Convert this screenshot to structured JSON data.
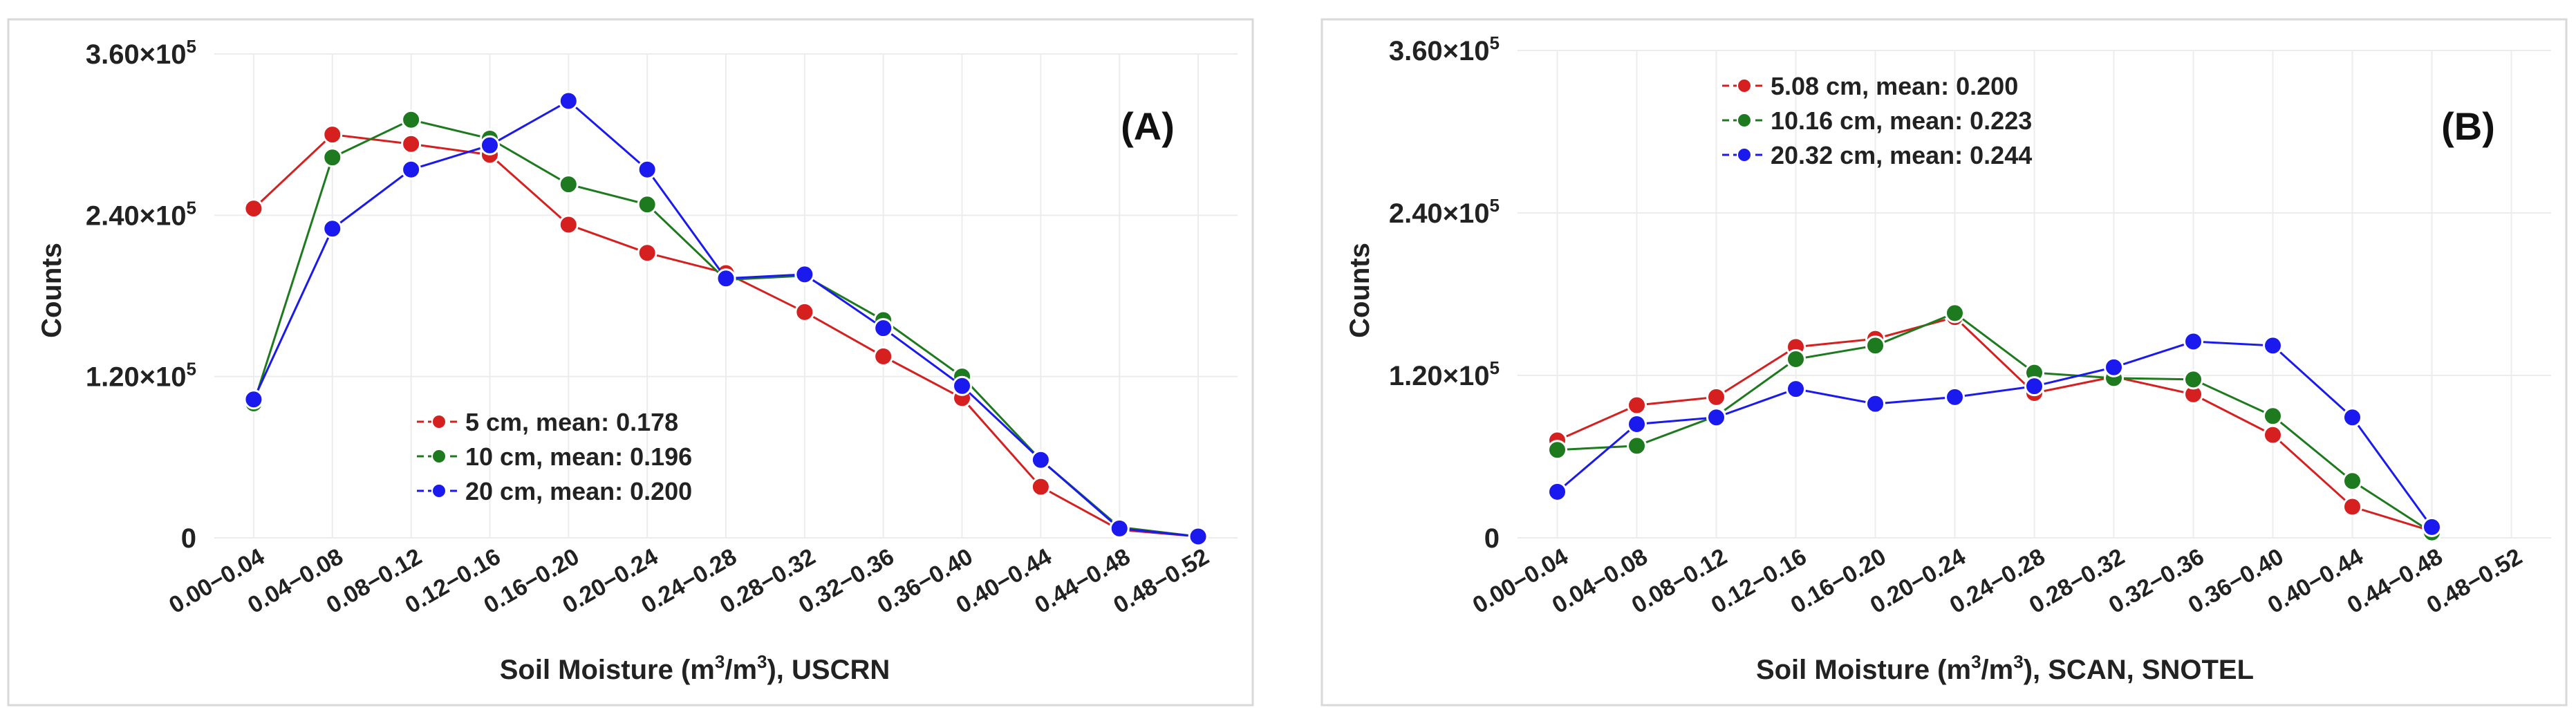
{
  "chart_data": [
    {
      "type": "line",
      "panel_label": "(A)",
      "categories": [
        "0.00−0.04",
        "0.04−0.08",
        "0.08−0.12",
        "0.12−0.16",
        "0.16−0.20",
        "0.20−0.24",
        "0.24−0.28",
        "0.28−0.32",
        "0.32−0.36",
        "0.36−0.40",
        "0.40−0.44",
        "0.44−0.48",
        "0.48−0.52"
      ],
      "xlabel_main": "Soil Moisture (m",
      "xlabel_sup1": "3",
      "xlabel_mid": "/m",
      "xlabel_sup2": "3",
      "xlabel_end": "), USCRN",
      "ylabel": "Counts",
      "ylim": [
        0,
        360000
      ],
      "yticks": [
        {
          "value": 0,
          "label": "0",
          "exp": ""
        },
        {
          "value": 120000,
          "label": "1.20×10",
          "exp": "5"
        },
        {
          "value": 240000,
          "label": "2.40×10",
          "exp": "5"
        },
        {
          "value": 360000,
          "label": "3.60×10",
          "exp": "5"
        }
      ],
      "legend_position": "center-bottom",
      "series": [
        {
          "name": "5 cm, mean: 0.178",
          "color": "#d62020",
          "values": [
            245000,
            300000,
            293000,
            285000,
            233000,
            212000,
            197000,
            168000,
            135000,
            104000,
            38000,
            6000,
            1000
          ]
        },
        {
          "name": "10 cm, mean: 0.196",
          "color": "#1e7a1e",
          "values": [
            100000,
            283000,
            311000,
            297000,
            263000,
            248000,
            192000,
            195000,
            162000,
            120000,
            58000,
            8000,
            1000
          ]
        },
        {
          "name": "20 cm, mean: 0.200",
          "color": "#1a1aee",
          "values": [
            103000,
            230000,
            274000,
            292000,
            325000,
            274000,
            193000,
            196000,
            156000,
            113000,
            58000,
            7000,
            1000
          ]
        }
      ]
    },
    {
      "type": "line",
      "panel_label": "(B)",
      "categories": [
        "0.00−0.04",
        "0.04−0.08",
        "0.08−0.12",
        "0.12−0.16",
        "0.16−0.20",
        "0.20−0.24",
        "0.24−0.28",
        "0.28−0.32",
        "0.32−0.36",
        "0.36−0.40",
        "0.40−0.44",
        "0.44−0.48",
        "0.48−0.52"
      ],
      "xlabel_main": "Soil Moisture (m",
      "xlabel_sup1": "3",
      "xlabel_mid": "/m",
      "xlabel_sup2": "3",
      "xlabel_end": "), SCAN, SNOTEL",
      "ylabel": "Counts",
      "ylim": [
        0,
        360000
      ],
      "yticks": [
        {
          "value": 0,
          "label": "0",
          "exp": ""
        },
        {
          "value": 120000,
          "label": "1.20×10",
          "exp": "5"
        },
        {
          "value": 240000,
          "label": "2.40×10",
          "exp": "5"
        },
        {
          "value": 360000,
          "label": "3.60×10",
          "exp": "5"
        }
      ],
      "legend_position": "top-left",
      "series": [
        {
          "name": "5.08 cm, mean: 0.200",
          "color": "#d62020",
          "values": [
            72000,
            98000,
            104000,
            141000,
            147000,
            163000,
            107000,
            119000,
            106000,
            76000,
            23000,
            5000,
            null
          ]
        },
        {
          "name": "10.16 cm, mean: 0.223",
          "color": "#1e7a1e",
          "values": [
            65000,
            68000,
            90000,
            132000,
            142000,
            166000,
            122000,
            118000,
            117000,
            90000,
            42000,
            4000,
            null
          ]
        },
        {
          "name": "20.32 cm, mean: 0.244",
          "color": "#1a1aee",
          "values": [
            34000,
            84000,
            89000,
            110000,
            99000,
            104000,
            112000,
            126000,
            145000,
            142000,
            89000,
            8000,
            null
          ]
        }
      ]
    }
  ]
}
